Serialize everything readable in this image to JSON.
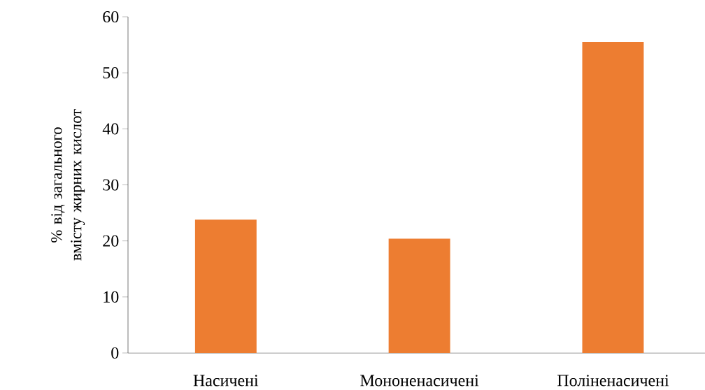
{
  "chart_data": {
    "type": "bar",
    "ylabel": "% від загального вмісту жирних кислот",
    "categories": [
      "Насичені",
      "Мононенасичені",
      "Поліненасичені"
    ],
    "values": [
      23.8,
      20.4,
      55.5
    ],
    "color": "#ed7d31",
    "ylim": [
      0,
      60
    ],
    "yticks": [
      0,
      10,
      20,
      30,
      40,
      50,
      60
    ]
  }
}
